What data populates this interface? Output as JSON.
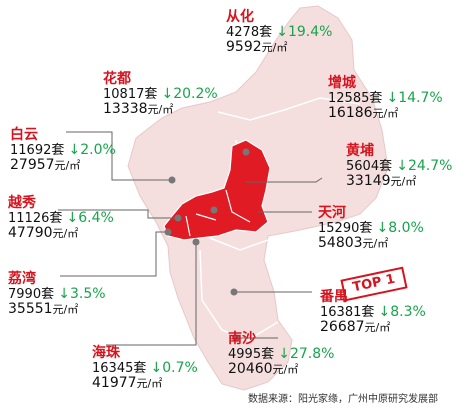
{
  "districts": [
    {
      "id": "conghua",
      "name": "从化",
      "units": "4278套",
      "arrow": "↓",
      "change": "19.4%",
      "price": "9592",
      "unit": "元/㎡"
    },
    {
      "id": "huadu",
      "name": "花都",
      "units": "10817套",
      "arrow": "↓",
      "change": "20.2%",
      "price": "13338",
      "unit": "元/㎡"
    },
    {
      "id": "zengcheng",
      "name": "增城",
      "units": "12585套",
      "arrow": "↓",
      "change": "14.7%",
      "price": "16186",
      "unit": "元/㎡"
    },
    {
      "id": "baiyun",
      "name": "白云",
      "units": "11692套",
      "arrow": "↓",
      "change": "2.0%",
      "price": "27957",
      "unit": "元/㎡"
    },
    {
      "id": "huangpu",
      "name": "黄埔",
      "units": "5604套",
      "arrow": "↓",
      "change": "24.7%",
      "price": "33149",
      "unit": "元/㎡"
    },
    {
      "id": "yuexiu",
      "name": "越秀",
      "units": "11126套",
      "arrow": "↓",
      "change": "6.4%",
      "price": "47790",
      "unit": "元/㎡"
    },
    {
      "id": "tianhe",
      "name": "天河",
      "units": "15290套",
      "arrow": "↓",
      "change": "8.0%",
      "price": "54803",
      "unit": "元/㎡"
    },
    {
      "id": "liwan",
      "name": "荔湾",
      "units": "7990套",
      "arrow": "↓",
      "change": "3.5%",
      "price": "35551",
      "unit": "元/㎡"
    },
    {
      "id": "panyu",
      "name": "番禺",
      "units": "16381套",
      "arrow": "↓",
      "change": "8.3%",
      "price": "26687",
      "unit": "元/㎡"
    },
    {
      "id": "haizhu",
      "name": "海珠",
      "units": "16345套",
      "arrow": "↓",
      "change": "0.7%",
      "price": "41977",
      "unit": "元/㎡"
    },
    {
      "id": "nansha",
      "name": "南沙",
      "units": "4995套",
      "arrow": "↓",
      "change": "27.8%",
      "price": "20460",
      "unit": "元/㎡"
    }
  ],
  "badge": "TOP 1",
  "source": "数据来源：阳光家缘，广州中原研究发展部",
  "colors": {
    "region": "#f4dede",
    "highlight": "#e01b24",
    "name": "#d7141e",
    "change": "#17a54b"
  }
}
